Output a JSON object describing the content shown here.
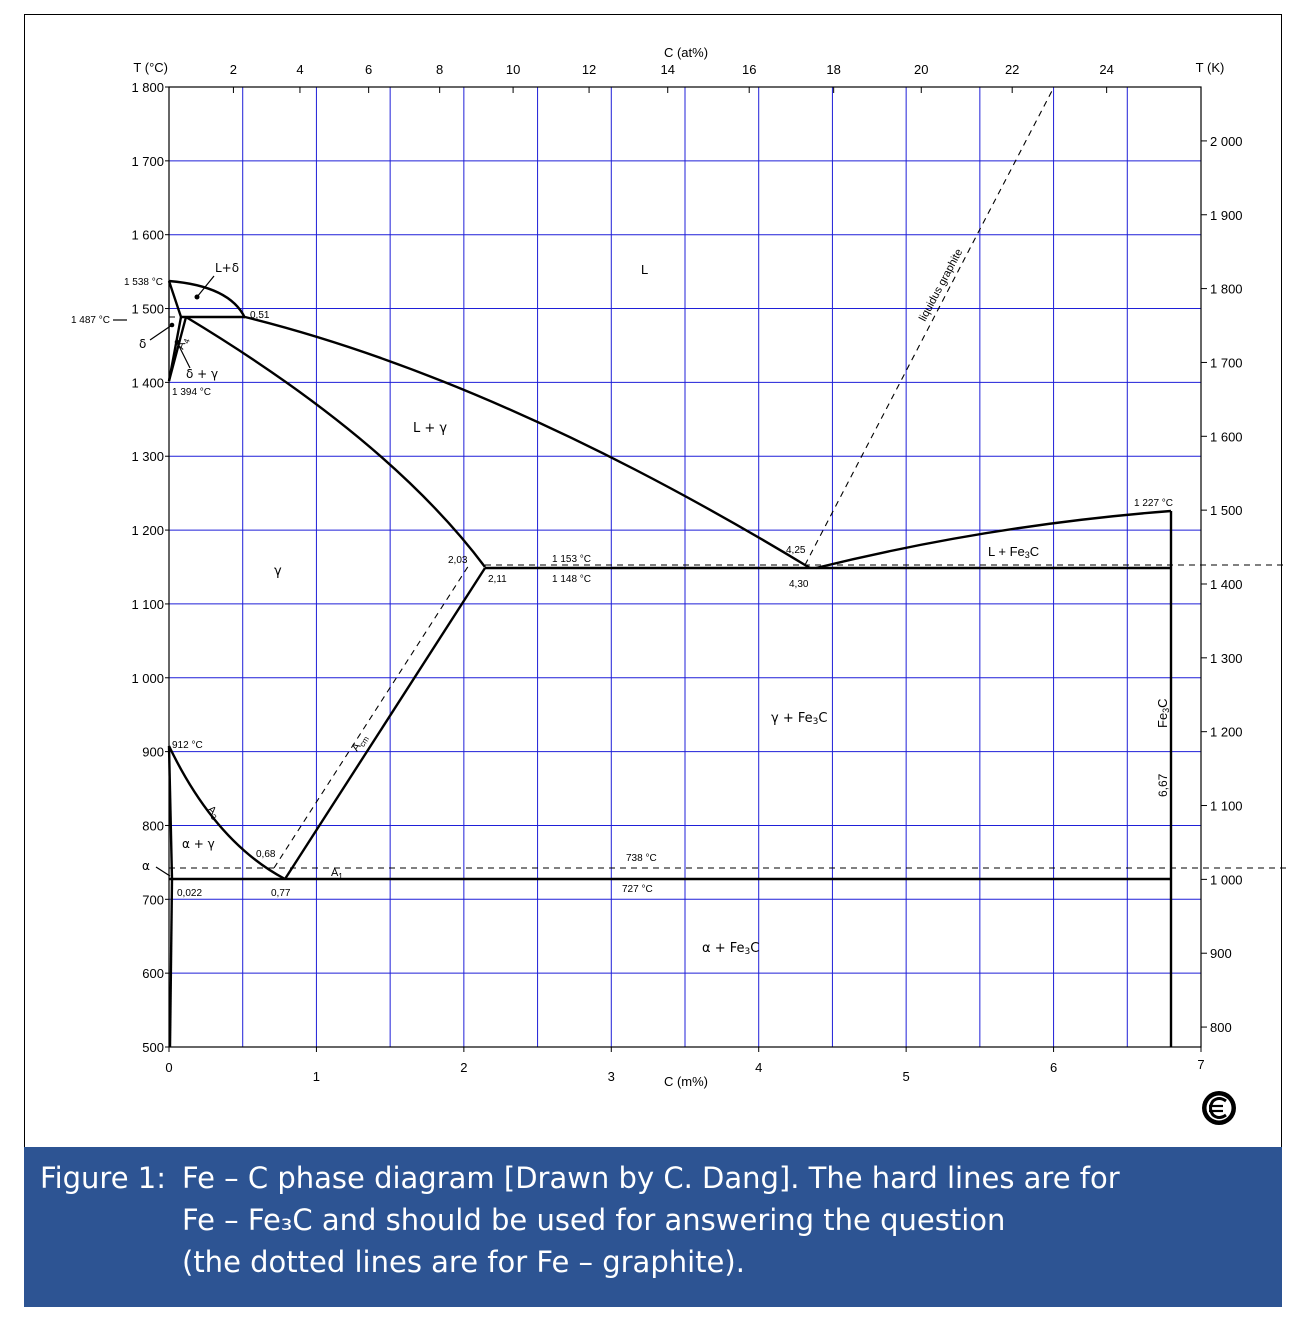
{
  "axes": {
    "left_title": "T (°C)",
    "right_title": "T (K)",
    "top_title": "C (at%)",
    "bottom_title": "C (m%)",
    "left_ticks": [
      "1 800",
      "1 700",
      "1 600",
      "1 500",
      "1 400",
      "1 300",
      "1 200",
      "1 100",
      "1 000",
      "900",
      "800",
      "700",
      "600",
      "500"
    ],
    "right_ticks": [
      "2 000",
      "1 900",
      "1 800",
      "1 700",
      "1 600",
      "1 500",
      "1 400",
      "1 300",
      "1 200",
      "1 100",
      "1 000",
      "900",
      "800"
    ],
    "top_ticks": [
      "2",
      "4",
      "6",
      "8",
      "10",
      "12",
      "14",
      "16",
      "18",
      "20",
      "22",
      "24"
    ],
    "bottom_ticks": [
      "0",
      "1",
      "2",
      "3",
      "4",
      "5",
      "6",
      "7"
    ]
  },
  "chart_data": {
    "type": "phase-diagram",
    "x_unit": "C (m%)",
    "y_unit": "T (°C)",
    "xlim": [
      0,
      7
    ],
    "ylim": [
      500,
      1800
    ],
    "invariant_lines": [
      {
        "label": "1 487 °C",
        "T": 1487,
        "x": [
          0.09,
          0.51
        ]
      },
      {
        "label": "1 148 °C",
        "T": 1148,
        "x": [
          2.11,
          6.67
        ]
      },
      {
        "label": "727 °C",
        "T": 727,
        "x": [
          0.022,
          6.67
        ]
      }
    ],
    "dashed_lines": [
      {
        "label": "1 153 °C",
        "T": 1153
      },
      {
        "label": "738 °C",
        "T": 738
      },
      {
        "label": "liquidus graphite"
      }
    ],
    "points": [
      {
        "label": "1 538 °C",
        "x": 0,
        "T": 1538
      },
      {
        "label": "1 394 °C",
        "x": 0,
        "T": 1394
      },
      {
        "label": "912 °C",
        "x": 0,
        "T": 912
      },
      {
        "label": "0,51",
        "x": 0.51,
        "T": 1487
      },
      {
        "label": "2,03",
        "x": 2.03,
        "T": 1153
      },
      {
        "label": "2,11",
        "x": 2.11,
        "T": 1148
      },
      {
        "label": "4,25",
        "x": 4.25,
        "T": 1153
      },
      {
        "label": "4,30",
        "x": 4.3,
        "T": 1148
      },
      {
        "label": "0,68",
        "x": 0.68,
        "T": 738
      },
      {
        "label": "0,77",
        "x": 0.77,
        "T": 727
      },
      {
        "label": "0,022",
        "x": 0.022,
        "T": 727
      },
      {
        "label": "6,67",
        "x": 6.67,
        "T": 1148
      },
      {
        "label": "1 227 °C",
        "x": 6.67,
        "T": 1227
      }
    ],
    "line_labels": [
      "A4",
      "A3",
      "Acm",
      "A1"
    ],
    "regions": [
      "L",
      "L+δ",
      "δ",
      "δ + γ",
      "L + γ",
      "γ",
      "L + Fe3C",
      "γ + Fe3C",
      "α + γ",
      "α",
      "α + Fe3C",
      "Fe3C"
    ]
  },
  "labels": {
    "T1538": "1 538 °C",
    "T1487": "1 487 °C",
    "T1394": "1 394 °C",
    "T912": "912 °C",
    "T1153": "1 153 °C",
    "T1148": "1 148 °C",
    "T738": "738 °C",
    "T727": "727 °C",
    "T1227": "1 227 °C",
    "c051": "0,51",
    "c203": "2,03",
    "c211": "2,11",
    "c425": "4,25",
    "c430": "4,30",
    "c068": "0,68",
    "c077": "0,77",
    "c0022": "0,022",
    "c667": "6,67",
    "A4": "A",
    "A4sub": "4",
    "A3": "A",
    "A3sub": "3",
    "Acm": "A",
    "Acmsub": "cm",
    "A1": "A",
    "A1sub": "1",
    "liquidus": "liquidus graphite",
    "L": "L",
    "Ldelta": "L+δ",
    "delta": "δ",
    "delta_gamma": "δ + γ",
    "L_gamma": "L + γ",
    "gamma": "γ",
    "L_Fe3C_a": "L + Fe",
    "L_Fe3C_b": "3",
    "L_Fe3C_c": "C",
    "g_Fe3C_a": "γ + Fe",
    "g_Fe3C_b": "3",
    "g_Fe3C_c": "C",
    "alpha_gamma": "α + γ",
    "alpha": "α",
    "a_Fe3C_a": "α + Fe",
    "a_Fe3C_b": "3",
    "a_Fe3C_c": "C",
    "Fe3C_a": "Fe",
    "Fe3C_b": "3",
    "Fe3C_c": "C"
  },
  "caption": {
    "label": "Figure 1:",
    "line1": "Fe – C phase diagram [Drawn by C. Dang].  The hard lines are for",
    "line2": "Fe – Fe₃C and should be used for answering the question",
    "line3": "(the dotted lines are for Fe – graphite)."
  },
  "cc_icon": "copyright-cc-icon"
}
